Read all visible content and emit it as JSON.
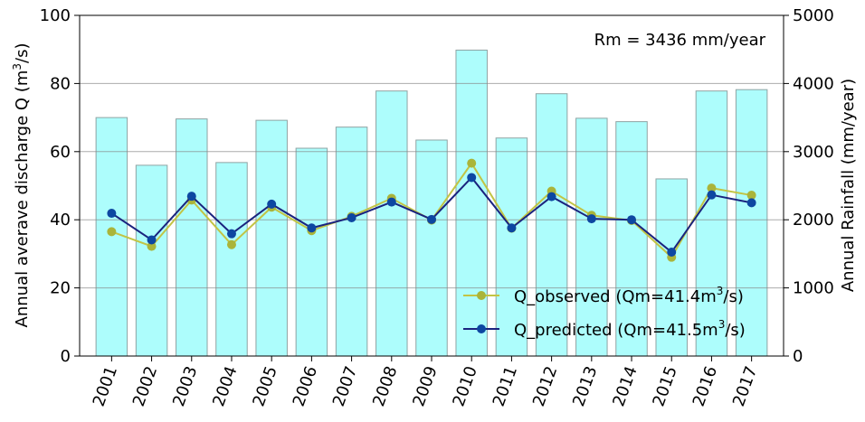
{
  "chart_data": {
    "type": "bar+line",
    "annotation": "Rm = 3436 mm/year",
    "categories": [
      "2001",
      "2002",
      "2003",
      "2004",
      "2005",
      "2006",
      "2007",
      "2008",
      "2009",
      "2010",
      "2011",
      "2012",
      "2013",
      "2014",
      "2015",
      "2016",
      "2017"
    ],
    "left_axis": {
      "label_pre": "Annual averave discharge Q (m",
      "label_sup": "3",
      "label_post": "/s)",
      "ylim": [
        0,
        100
      ],
      "ticks": [
        0,
        20,
        40,
        60,
        80,
        100
      ]
    },
    "right_axis": {
      "label": "Annual Rainfall (mm/year)",
      "ylim": [
        0,
        5000
      ],
      "ticks": [
        0,
        1000,
        2000,
        3000,
        4000,
        5000
      ]
    },
    "grid": true,
    "bars": {
      "name": "Annual Rainfall",
      "axis": "right",
      "color": "#adfdfc",
      "edge": "#8fa3a3",
      "values": [
        3500,
        2800,
        3480,
        2840,
        3460,
        3050,
        3360,
        3890,
        3170,
        4490,
        3200,
        3850,
        3490,
        3440,
        2600,
        3890,
        3910
      ]
    },
    "series": [
      {
        "name": "Q_observed",
        "legend_pre": "Q_observed (Qm=41.4m",
        "legend_sup": "3",
        "legend_post": "/s)",
        "axis": "left",
        "color": "#c2c444",
        "marker_color": "#aab43a",
        "values": [
          36.5,
          32.2,
          45.8,
          32.7,
          43.7,
          36.8,
          41.0,
          46.3,
          39.9,
          56.6,
          37.5,
          48.4,
          41.3,
          39.8,
          29.0,
          49.3,
          47.2
        ]
      },
      {
        "name": "Q_predicted",
        "legend_pre": "Q_predicted (Qm=41.5m",
        "legend_sup": "3",
        "legend_post": "/s)",
        "axis": "left",
        "color": "#1a237e",
        "marker_color": "#0d47a1",
        "values": [
          41.9,
          34.1,
          46.9,
          35.9,
          44.6,
          37.6,
          40.6,
          45.2,
          40.1,
          52.4,
          37.6,
          46.8,
          40.3,
          40.0,
          30.5,
          47.3,
          45.0
        ]
      }
    ]
  }
}
